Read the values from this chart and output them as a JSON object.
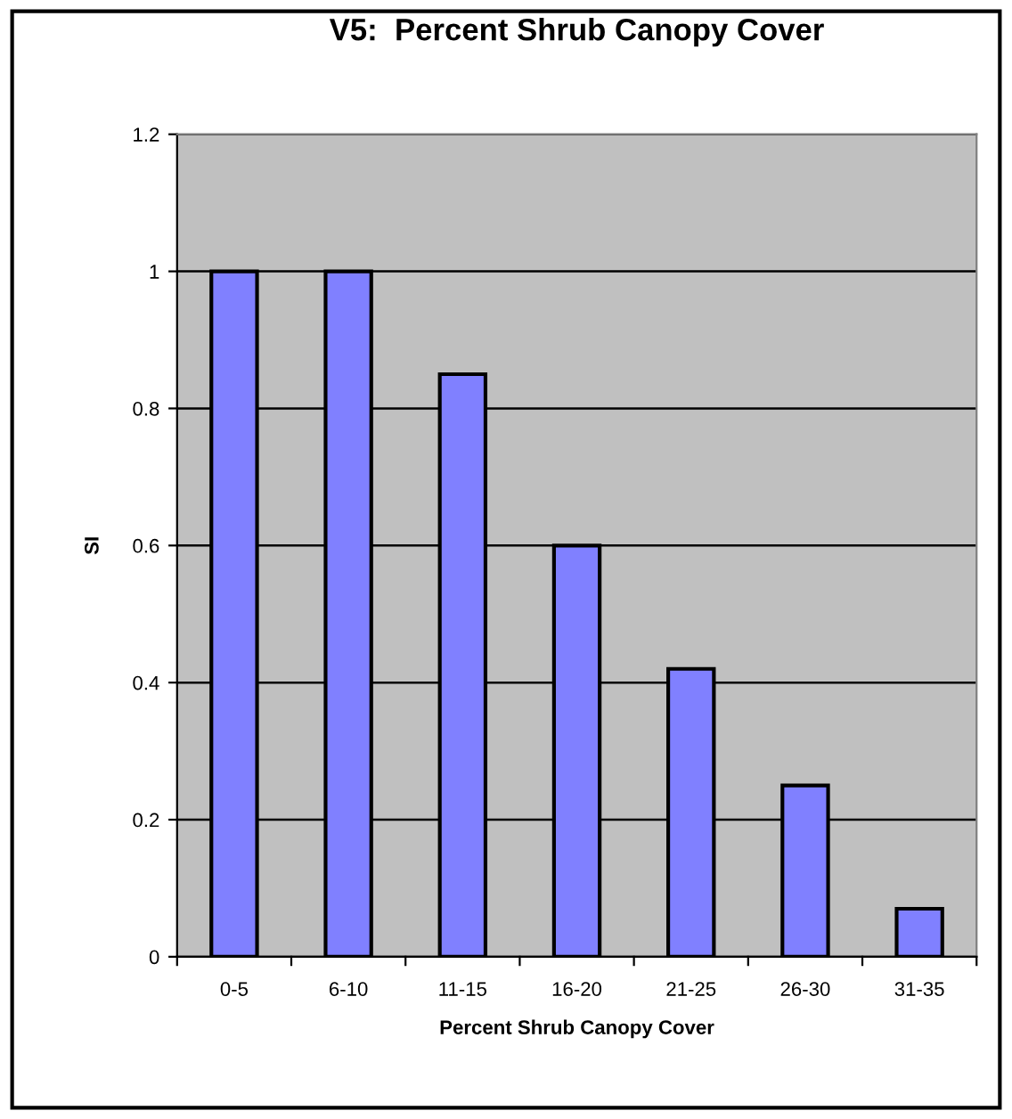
{
  "chart_data": {
    "type": "bar",
    "title": "V5:  Percent Shrub Canopy Cover",
    "xlabel": "Percent Shrub Canopy Cover",
    "ylabel": "SI",
    "categories": [
      "0-5",
      "6-10",
      "11-15",
      "16-20",
      "21-25",
      "26-30",
      "31-35"
    ],
    "values": [
      1,
      1,
      0.85,
      0.6,
      0.42,
      0.25,
      0.07
    ],
    "color": "#8080ff",
    "ylim": [
      0,
      1.2
    ],
    "yticks": [
      0,
      0.2,
      0.4,
      0.6,
      0.8,
      1,
      1.2
    ],
    "grid": "y",
    "legend": false
  }
}
